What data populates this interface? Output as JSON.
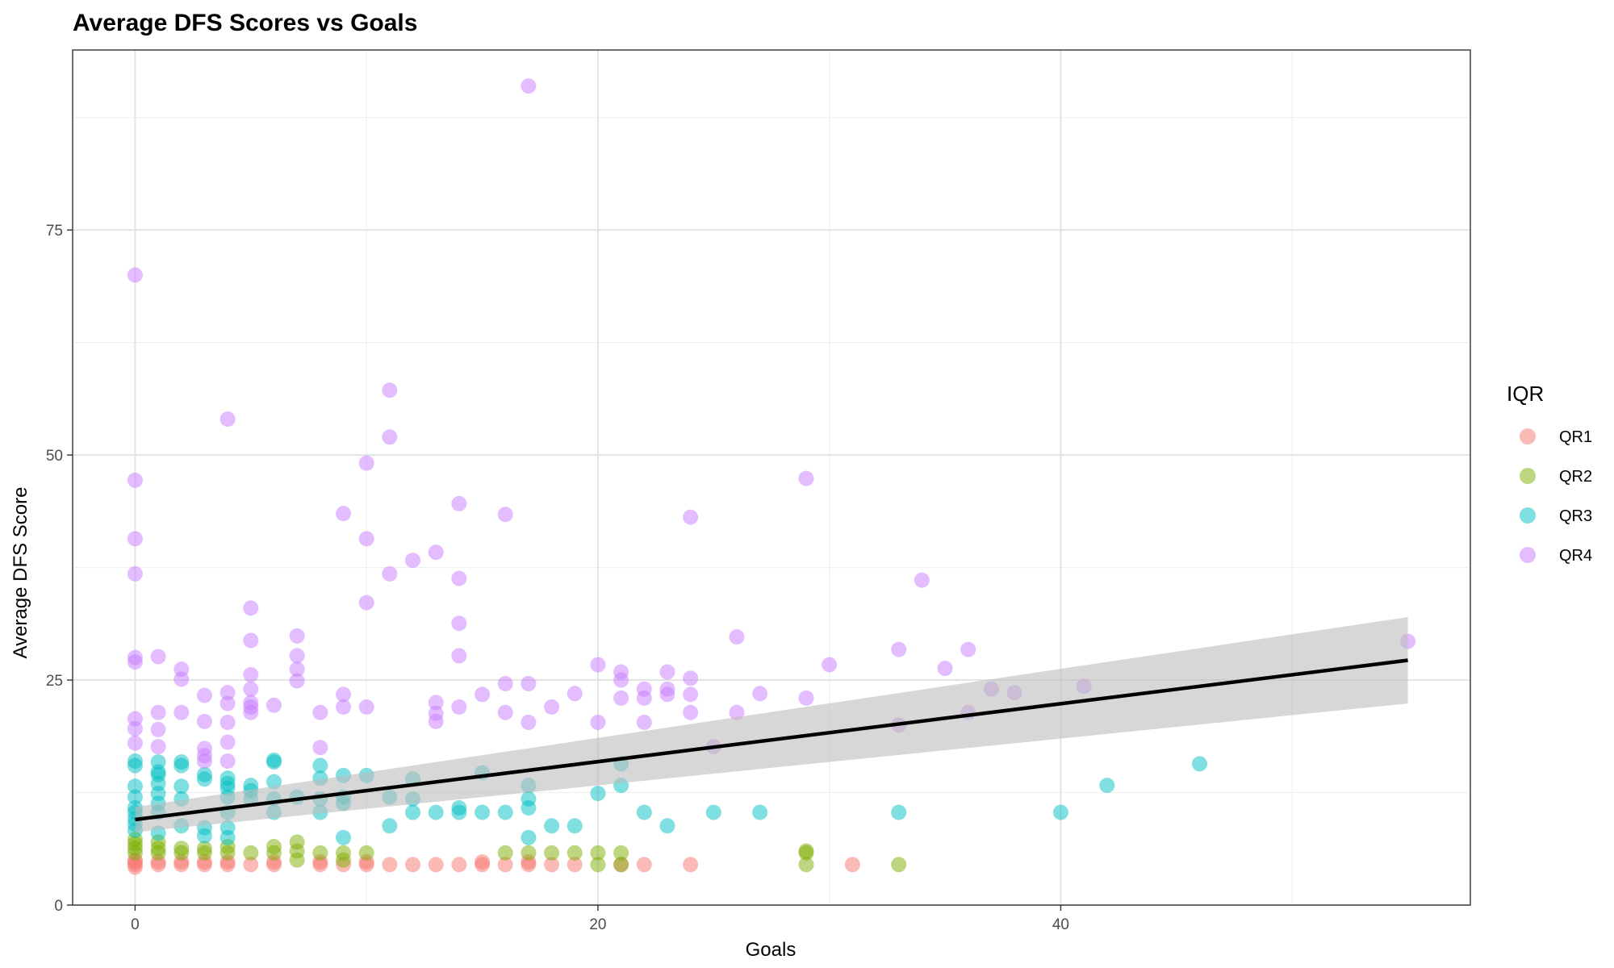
{
  "chart_data": {
    "type": "scatter",
    "title": "Average DFS Scores vs Goals",
    "xlabel": "Goals",
    "ylabel": "Average DFS Score",
    "xlim": [
      -2.7,
      57.7
    ],
    "ylim": [
      0,
      95
    ],
    "x_ticks": [
      0,
      20,
      40
    ],
    "x_tick_labels": [
      "0",
      "20",
      "40"
    ],
    "x_minor_ticks": [
      10,
      30,
      50
    ],
    "y_ticks": [
      0,
      25,
      50,
      75
    ],
    "y_tick_labels": [
      "0",
      "25",
      "50",
      "75"
    ],
    "y_minor_ticks": [
      12.5,
      37.5,
      62.5,
      87.5
    ],
    "grid": true,
    "legend": {
      "title": "IQR",
      "position": "right",
      "entries": [
        {
          "name": "QR1",
          "color": "#F8766D"
        },
        {
          "name": "QR2",
          "color": "#7CAE00"
        },
        {
          "name": "QR3",
          "color": "#00BFC4"
        },
        {
          "name": "QR4",
          "color": "#C77CFF"
        }
      ]
    },
    "point_alpha": 0.5,
    "series": [
      {
        "name": "QR1",
        "color": "#F8766D",
        "points": [
          [
            0,
            4.2
          ],
          [
            0,
            4.5
          ],
          [
            0,
            4.8
          ],
          [
            0,
            5.0
          ],
          [
            1,
            4.5
          ],
          [
            1,
            4.8
          ],
          [
            2,
            4.5
          ],
          [
            2,
            4.8
          ],
          [
            3,
            4.5
          ],
          [
            3,
            4.8
          ],
          [
            4,
            4.5
          ],
          [
            4,
            4.8
          ],
          [
            5,
            4.5
          ],
          [
            6,
            4.5
          ],
          [
            6,
            4.8
          ],
          [
            8,
            4.5
          ],
          [
            8,
            4.8
          ],
          [
            9,
            4.5
          ],
          [
            10,
            4.5
          ],
          [
            10,
            4.8
          ],
          [
            11,
            4.5
          ],
          [
            12,
            4.5
          ],
          [
            13,
            4.5
          ],
          [
            14,
            4.5
          ],
          [
            15,
            4.5
          ],
          [
            15,
            4.8
          ],
          [
            16,
            4.5
          ],
          [
            17,
            4.5
          ],
          [
            17,
            4.8
          ],
          [
            18,
            4.5
          ],
          [
            19,
            4.5
          ],
          [
            21,
            4.5
          ],
          [
            22,
            4.5
          ],
          [
            24,
            4.5
          ],
          [
            31,
            4.5
          ]
        ]
      },
      {
        "name": "QR2",
        "color": "#7CAE00",
        "points": [
          [
            0,
            5.8
          ],
          [
            0,
            6.3
          ],
          [
            0,
            6.8
          ],
          [
            0,
            7.3
          ],
          [
            1,
            5.8
          ],
          [
            1,
            6.3
          ],
          [
            1,
            7.0
          ],
          [
            2,
            5.8
          ],
          [
            2,
            6.3
          ],
          [
            3,
            5.8
          ],
          [
            3,
            6.3
          ],
          [
            4,
            5.8
          ],
          [
            4,
            6.5
          ],
          [
            5,
            5.8
          ],
          [
            6,
            5.8
          ],
          [
            6,
            6.5
          ],
          [
            7,
            5.0
          ],
          [
            7,
            6.0
          ],
          [
            7,
            7.0
          ],
          [
            8,
            5.8
          ],
          [
            9,
            5.0
          ],
          [
            9,
            5.8
          ],
          [
            10,
            5.8
          ],
          [
            16,
            5.8
          ],
          [
            17,
            5.8
          ],
          [
            18,
            5.8
          ],
          [
            19,
            5.8
          ],
          [
            20,
            4.5
          ],
          [
            20,
            5.8
          ],
          [
            21,
            4.5
          ],
          [
            21,
            5.8
          ],
          [
            29,
            4.5
          ],
          [
            29,
            5.8
          ],
          [
            29,
            6.0
          ],
          [
            33,
            4.5
          ]
        ]
      },
      {
        "name": "QR3",
        "color": "#00BFC4",
        "points": [
          [
            0,
            8.3
          ],
          [
            0,
            9.0
          ],
          [
            0,
            9.6
          ],
          [
            0,
            10.3
          ],
          [
            0,
            10.8
          ],
          [
            0,
            12.0
          ],
          [
            0,
            13.2
          ],
          [
            0,
            15.5
          ],
          [
            0,
            16.0
          ],
          [
            1,
            8.0
          ],
          [
            1,
            10.3
          ],
          [
            1,
            11.3
          ],
          [
            1,
            12.4
          ],
          [
            1,
            13.5
          ],
          [
            1,
            14.5
          ],
          [
            1,
            14.8
          ],
          [
            1,
            15.9
          ],
          [
            2,
            8.8
          ],
          [
            2,
            11.8
          ],
          [
            2,
            13.2
          ],
          [
            2,
            15.5
          ],
          [
            2,
            15.9
          ],
          [
            3,
            7.7
          ],
          [
            3,
            8.6
          ],
          [
            3,
            14.0
          ],
          [
            3,
            14.5
          ],
          [
            4,
            7.5
          ],
          [
            4,
            8.6
          ],
          [
            4,
            10.3
          ],
          [
            4,
            12.0
          ],
          [
            4,
            13.0
          ],
          [
            4,
            13.5
          ],
          [
            4,
            14.1
          ],
          [
            5,
            11.8
          ],
          [
            5,
            12.7
          ],
          [
            5,
            13.3
          ],
          [
            6,
            10.3
          ],
          [
            6,
            11.8
          ],
          [
            6,
            13.7
          ],
          [
            6,
            15.9
          ],
          [
            6,
            16.1
          ],
          [
            7,
            12.0
          ],
          [
            8,
            10.3
          ],
          [
            8,
            11.8
          ],
          [
            8,
            14.1
          ],
          [
            8,
            15.5
          ],
          [
            9,
            7.5
          ],
          [
            9,
            11.3
          ],
          [
            9,
            12.0
          ],
          [
            9,
            14.4
          ],
          [
            10,
            14.4
          ],
          [
            11,
            8.8
          ],
          [
            11,
            12.0
          ],
          [
            12,
            10.3
          ],
          [
            12,
            11.8
          ],
          [
            12,
            14.0
          ],
          [
            13,
            10.3
          ],
          [
            14,
            10.3
          ],
          [
            14,
            10.8
          ],
          [
            15,
            10.3
          ],
          [
            15,
            14.7
          ],
          [
            16,
            10.3
          ],
          [
            17,
            7.5
          ],
          [
            17,
            10.8
          ],
          [
            17,
            11.8
          ],
          [
            17,
            13.3
          ],
          [
            18,
            8.8
          ],
          [
            19,
            8.8
          ],
          [
            20,
            12.4
          ],
          [
            21,
            13.3
          ],
          [
            21,
            15.7
          ],
          [
            22,
            10.3
          ],
          [
            23,
            8.8
          ],
          [
            25,
            10.3
          ],
          [
            27,
            10.3
          ],
          [
            33,
            10.3
          ],
          [
            40,
            10.3
          ],
          [
            42,
            13.3
          ],
          [
            46,
            15.7
          ]
        ]
      },
      {
        "name": "QR4",
        "color": "#C77CFF",
        "points": [
          [
            0,
            70.0
          ],
          [
            0,
            47.2
          ],
          [
            0,
            40.7
          ],
          [
            0,
            36.8
          ],
          [
            0,
            27.5
          ],
          [
            0,
            27.0
          ],
          [
            0,
            20.7
          ],
          [
            0,
            19.6
          ],
          [
            0,
            18.0
          ],
          [
            1,
            27.6
          ],
          [
            1,
            21.4
          ],
          [
            1,
            19.5
          ],
          [
            1,
            17.6
          ],
          [
            2,
            26.2
          ],
          [
            2,
            25.1
          ],
          [
            2,
            21.4
          ],
          [
            3,
            23.3
          ],
          [
            3,
            20.4
          ],
          [
            3,
            17.4
          ],
          [
            3,
            16.6
          ],
          [
            3,
            16.0
          ],
          [
            4,
            54.0
          ],
          [
            4,
            23.6
          ],
          [
            4,
            22.4
          ],
          [
            4,
            20.3
          ],
          [
            4,
            18.1
          ],
          [
            4,
            16.0
          ],
          [
            5,
            33.0
          ],
          [
            5,
            29.4
          ],
          [
            5,
            25.6
          ],
          [
            5,
            24.0
          ],
          [
            5,
            22.5
          ],
          [
            5,
            22.0
          ],
          [
            5,
            21.4
          ],
          [
            6,
            22.2
          ],
          [
            7,
            29.9
          ],
          [
            7,
            27.7
          ],
          [
            7,
            26.2
          ],
          [
            7,
            24.9
          ],
          [
            8,
            21.4
          ],
          [
            8,
            17.5
          ],
          [
            9,
            43.5
          ],
          [
            9,
            23.4
          ],
          [
            9,
            22.0
          ],
          [
            10,
            49.1
          ],
          [
            10,
            40.7
          ],
          [
            10,
            33.6
          ],
          [
            10,
            22.0
          ],
          [
            11,
            57.2
          ],
          [
            11,
            52.0
          ],
          [
            11,
            36.8
          ],
          [
            12,
            38.3
          ],
          [
            13,
            39.2
          ],
          [
            13,
            22.5
          ],
          [
            13,
            21.3
          ],
          [
            13,
            20.4
          ],
          [
            14,
            44.6
          ],
          [
            14,
            36.3
          ],
          [
            14,
            31.3
          ],
          [
            14,
            27.7
          ],
          [
            14,
            22.0
          ],
          [
            15,
            23.4
          ],
          [
            16,
            43.4
          ],
          [
            16,
            24.6
          ],
          [
            16,
            21.4
          ],
          [
            17,
            91.0
          ],
          [
            17,
            24.6
          ],
          [
            17,
            20.3
          ],
          [
            18,
            22.0
          ],
          [
            19,
            23.5
          ],
          [
            20,
            26.7
          ],
          [
            20,
            20.3
          ],
          [
            21,
            25.9
          ],
          [
            21,
            25.0
          ],
          [
            21,
            23.0
          ],
          [
            22,
            24.0
          ],
          [
            22,
            23.0
          ],
          [
            22,
            20.3
          ],
          [
            23,
            25.9
          ],
          [
            23,
            24.0
          ],
          [
            23,
            23.4
          ],
          [
            24,
            43.1
          ],
          [
            24,
            25.2
          ],
          [
            24,
            23.4
          ],
          [
            24,
            21.4
          ],
          [
            25,
            17.6
          ],
          [
            26,
            29.8
          ],
          [
            26,
            21.4
          ],
          [
            27,
            23.5
          ],
          [
            29,
            47.4
          ],
          [
            29,
            23.0
          ],
          [
            30,
            26.7
          ],
          [
            33,
            28.4
          ],
          [
            33,
            20.0
          ],
          [
            34,
            36.1
          ],
          [
            35,
            26.3
          ],
          [
            36,
            28.4
          ],
          [
            36,
            21.4
          ],
          [
            37,
            24.0
          ],
          [
            38,
            23.6
          ],
          [
            41,
            24.3
          ],
          [
            55,
            29.3
          ]
        ]
      }
    ],
    "trend_line": {
      "method": "linear",
      "x": [
        0,
        55
      ],
      "y": [
        9.5,
        27.2
      ],
      "ci_lower": [
        8.1,
        22.4
      ],
      "ci_upper": [
        10.9,
        32.0
      ],
      "color": "#000000",
      "ribbon_color": "#cccccc"
    }
  }
}
